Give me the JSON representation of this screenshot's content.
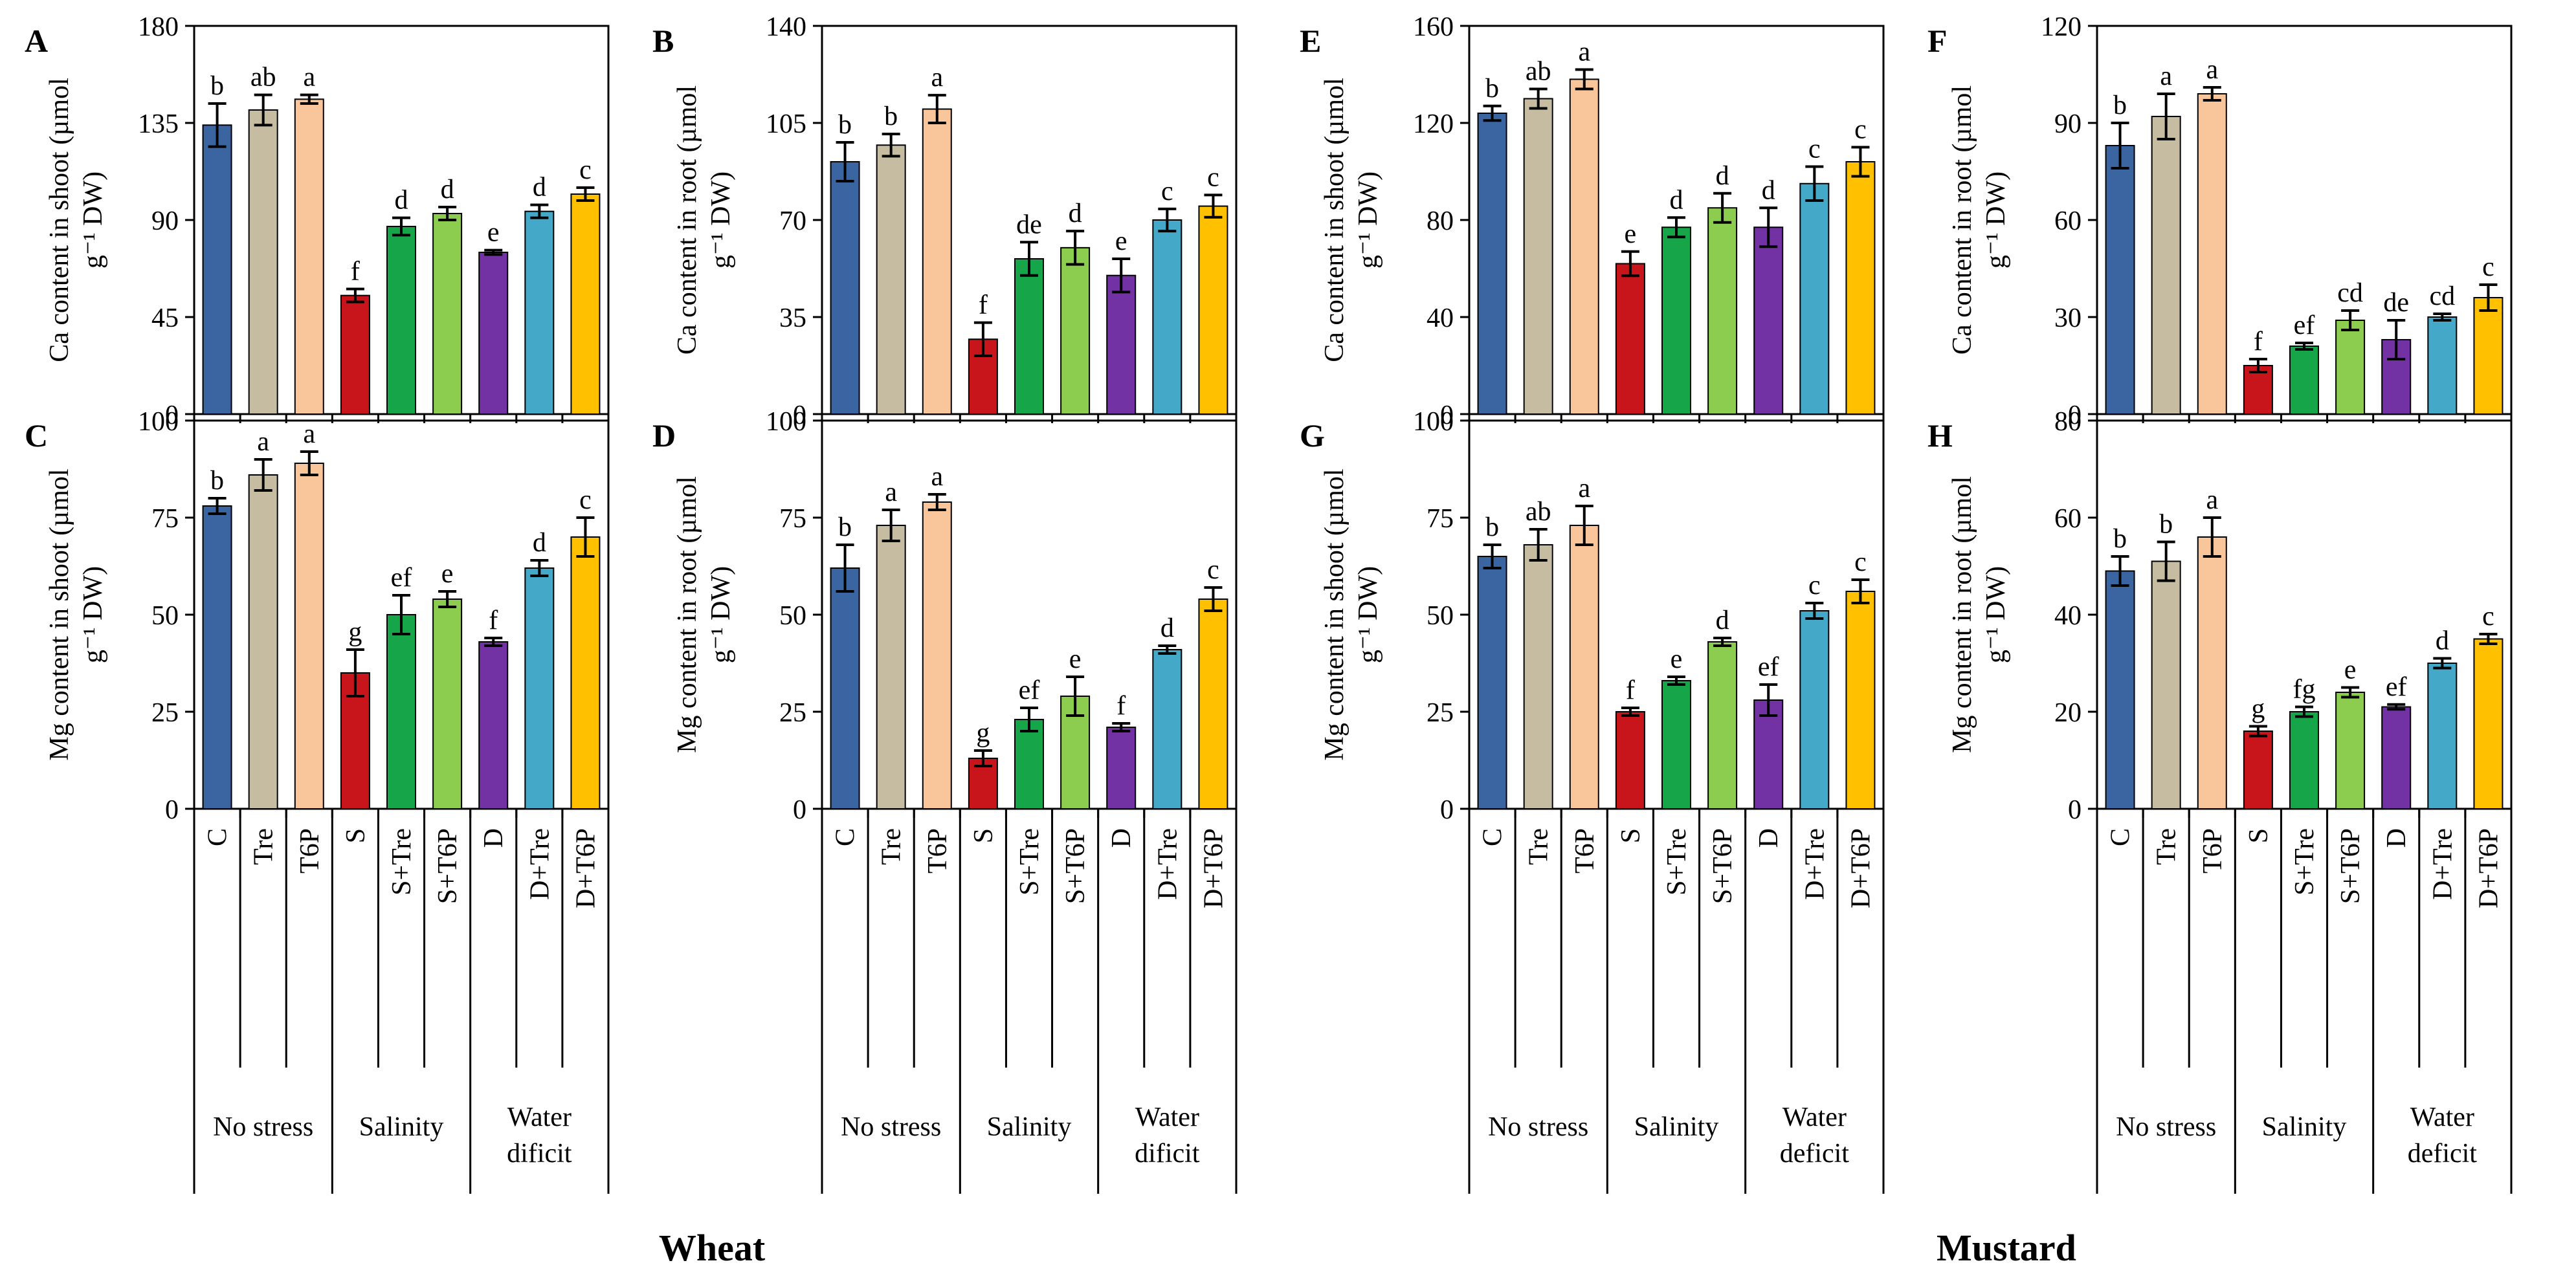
{
  "figure": {
    "groups": [
      {
        "name": "No stress",
        "lines": [
          "No stress"
        ]
      },
      {
        "name": "Salinity",
        "lines": [
          "Salinity"
        ]
      },
      {
        "name": "Water dificit",
        "lines": [
          "Water",
          "dificit"
        ]
      },
      {
        "name": "No stress",
        "lines": [
          "No stress"
        ]
      },
      {
        "name": "Salinity",
        "lines": [
          "Salinity"
        ]
      },
      {
        "name": "Water deficit",
        "lines": [
          "Water",
          "deficit"
        ]
      }
    ],
    "crop_labels": [
      "Wheat",
      "Mustard"
    ],
    "treatment_labels": [
      "C",
      "Tre",
      "T6P",
      "S",
      "S+Tre",
      "S+T6P",
      "D",
      "D+Tre",
      "D+T6P"
    ]
  },
  "chart_data": [
    {
      "panel": "A",
      "type": "bar",
      "ylabel": [
        "Ca content in shoot (µmol",
        "g⁻¹ DW)"
      ],
      "categories": [
        "C",
        "Tre",
        "T6P",
        "S",
        "S+Tre",
        "S+T6P",
        "D",
        "D+Tre",
        "D+T6P"
      ],
      "values": [
        134,
        141,
        146,
        55,
        87,
        93,
        75,
        94,
        102
      ],
      "errors": [
        10,
        7,
        2,
        3,
        4,
        3,
        1,
        3,
        3
      ],
      "letters": [
        "b",
        "ab",
        "a",
        "f",
        "d",
        "d",
        "e",
        "d",
        "c"
      ],
      "ylim": [
        0,
        180
      ],
      "yticks": [
        0,
        45,
        90,
        135,
        180
      ]
    },
    {
      "panel": "B",
      "type": "bar",
      "ylabel": [
        "Ca content in root (µmol",
        "g⁻¹ DW)"
      ],
      "categories": [
        "C",
        "Tre",
        "T6P",
        "S",
        "S+Tre",
        "S+T6P",
        "D",
        "D+Tre",
        "D+T6P"
      ],
      "values": [
        91,
        97,
        110,
        27,
        56,
        60,
        50,
        70,
        75
      ],
      "errors": [
        7,
        4,
        5,
        6,
        6,
        6,
        6,
        4,
        4
      ],
      "letters": [
        "b",
        "b",
        "a",
        "f",
        "de",
        "d",
        "e",
        "c",
        "c"
      ],
      "ylim": [
        0,
        140
      ],
      "yticks": [
        0,
        35,
        70,
        105,
        140
      ]
    },
    {
      "panel": "C",
      "type": "bar",
      "ylabel": [
        "Mg content in shoot (µmol",
        "g⁻¹ DW)"
      ],
      "categories": [
        "C",
        "Tre",
        "T6P",
        "S",
        "S+Tre",
        "S+T6P",
        "D",
        "D+Tre",
        "D+T6P"
      ],
      "values": [
        78,
        86,
        89,
        35,
        50,
        54,
        43,
        62,
        70
      ],
      "errors": [
        2,
        4,
        3,
        6,
        5,
        2,
        1,
        2,
        5
      ],
      "letters": [
        "b",
        "a",
        "a",
        "g",
        "ef",
        "e",
        "f",
        "d",
        "c"
      ],
      "ylim": [
        0,
        100
      ],
      "yticks": [
        0,
        25,
        50,
        75,
        100
      ]
    },
    {
      "panel": "D",
      "type": "bar",
      "ylabel": [
        "Mg content in root (µmol",
        "g⁻¹ DW)"
      ],
      "categories": [
        "C",
        "Tre",
        "T6P",
        "S",
        "S+Tre",
        "S+T6P",
        "D",
        "D+Tre",
        "D+T6P"
      ],
      "values": [
        62,
        73,
        79,
        13,
        23,
        29,
        21,
        41,
        54
      ],
      "errors": [
        6,
        4,
        2,
        2,
        3,
        5,
        1,
        1,
        3
      ],
      "letters": [
        "b",
        "a",
        "a",
        "g",
        "ef",
        "e",
        "f",
        "d",
        "c"
      ],
      "ylim": [
        0,
        100
      ],
      "yticks": [
        0,
        25,
        50,
        75,
        100
      ]
    },
    {
      "panel": "E",
      "type": "bar",
      "ylabel": [
        "Ca content in shoot (µmol",
        "g⁻¹ DW)"
      ],
      "categories": [
        "C",
        "Tre",
        "T6P",
        "S",
        "S+Tre",
        "S+T6P",
        "D",
        "D+Tre",
        "D+T6P"
      ],
      "values": [
        124,
        130,
        138,
        62,
        77,
        85,
        77,
        95,
        104
      ],
      "errors": [
        3,
        4,
        4,
        5,
        4,
        6,
        8,
        7,
        6
      ],
      "letters": [
        "b",
        "ab",
        "a",
        "e",
        "d",
        "d",
        "d",
        "c",
        "c"
      ],
      "ylim": [
        0,
        160
      ],
      "yticks": [
        0,
        40,
        80,
        120,
        160
      ]
    },
    {
      "panel": "F",
      "type": "bar",
      "ylabel": [
        "Ca content in root (µmol",
        "g⁻¹ DW)"
      ],
      "categories": [
        "C",
        "Tre",
        "T6P",
        "S",
        "S+Tre",
        "S+T6P",
        "D",
        "D+Tre",
        "D+T6P"
      ],
      "values": [
        83,
        92,
        99,
        15,
        21,
        29,
        23,
        30,
        36
      ],
      "errors": [
        7,
        7,
        2,
        2,
        1,
        3,
        6,
        1,
        4
      ],
      "letters": [
        "b",
        "a",
        "a",
        "f",
        "ef",
        "cd",
        "de",
        "cd",
        "c"
      ],
      "ylim": [
        0,
        120
      ],
      "yticks": [
        0,
        30,
        60,
        90,
        120
      ]
    },
    {
      "panel": "G",
      "type": "bar",
      "ylabel": [
        "Mg content in shoot (µmol",
        "g⁻¹ DW)"
      ],
      "categories": [
        "C",
        "Tre",
        "T6P",
        "S",
        "S+Tre",
        "S+T6P",
        "D",
        "D+Tre",
        "D+T6P"
      ],
      "values": [
        65,
        68,
        73,
        25,
        33,
        43,
        28,
        51,
        56
      ],
      "errors": [
        3,
        4,
        5,
        1,
        1,
        1,
        4,
        2,
        3
      ],
      "letters": [
        "b",
        "ab",
        "a",
        "f",
        "e",
        "d",
        "ef",
        "c",
        "c"
      ],
      "ylim": [
        0,
        100
      ],
      "yticks": [
        0,
        25,
        50,
        75,
        100
      ]
    },
    {
      "panel": "H",
      "type": "bar",
      "ylabel": [
        "Mg content in root (µmol",
        "g⁻¹ DW)"
      ],
      "categories": [
        "C",
        "Tre",
        "T6P",
        "S",
        "S+Tre",
        "S+T6P",
        "D",
        "D+Tre",
        "D+T6P"
      ],
      "values": [
        49,
        51,
        56,
        16,
        20,
        24,
        21,
        30,
        35
      ],
      "errors": [
        3,
        4,
        4,
        1,
        1,
        1,
        0.5,
        1,
        1
      ],
      "letters": [
        "b",
        "b",
        "a",
        "g",
        "fg",
        "e",
        "ef",
        "d",
        "c"
      ],
      "ylim": [
        0,
        80
      ],
      "yticks": [
        0,
        20,
        40,
        60,
        80
      ]
    }
  ],
  "colors": {
    "bars": [
      "#3a65a0",
      "#c5bca1",
      "#f9c59b",
      "#c8151b",
      "#17a54a",
      "#8ccc4f",
      "#7232a3",
      "#44a8c8",
      "#ffc000"
    ],
    "axis": "#000000",
    "error": "#000000"
  }
}
